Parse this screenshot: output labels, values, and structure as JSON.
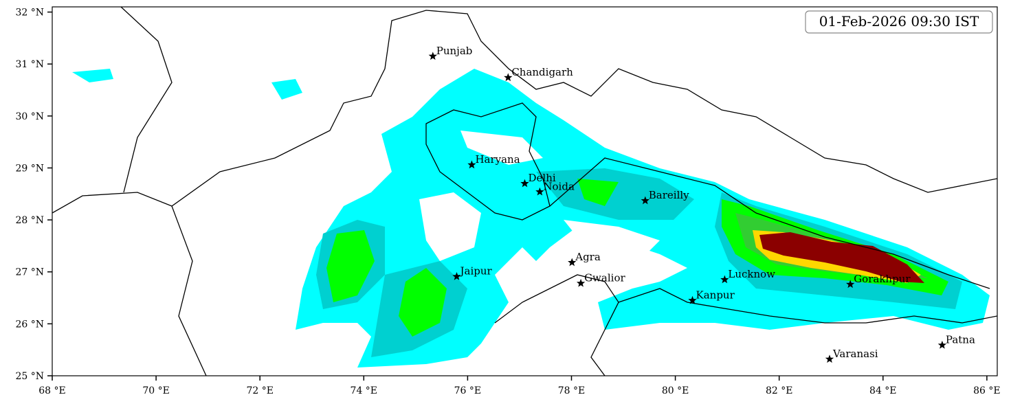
{
  "map": {
    "timestamp": "01-Feb-2026 09:30 IST",
    "xlim": [
      68,
      86.2
    ],
    "ylim": [
      25,
      32.1
    ],
    "xticks": [
      {
        "value": 68,
        "label": "68 °E"
      },
      {
        "value": 70,
        "label": "70 °E"
      },
      {
        "value": 72,
        "label": "72 °E"
      },
      {
        "value": 74,
        "label": "74 °E"
      },
      {
        "value": 76,
        "label": "76 °E"
      },
      {
        "value": 78,
        "label": "78 °E"
      },
      {
        "value": 80,
        "label": "80 °E"
      },
      {
        "value": 82,
        "label": "82 °E"
      },
      {
        "value": 84,
        "label": "84 °E"
      },
      {
        "value": 86,
        "label": "86 °E"
      }
    ],
    "yticks": [
      {
        "value": 25,
        "label": "25 °N"
      },
      {
        "value": 26,
        "label": "26 °N"
      },
      {
        "value": 27,
        "label": "27 °N"
      },
      {
        "value": 28,
        "label": "28 °N"
      },
      {
        "value": 29,
        "label": "29 °N"
      },
      {
        "value": 30,
        "label": "30 °N"
      },
      {
        "value": 31,
        "label": "31 °N"
      },
      {
        "value": 32,
        "label": "32 °N"
      }
    ],
    "cities": [
      {
        "name": "Punjab",
        "lon": 75.33,
        "lat": 31.15
      },
      {
        "name": "Chandigarh",
        "lon": 76.78,
        "lat": 30.74
      },
      {
        "name": "Haryana",
        "lon": 76.08,
        "lat": 29.06
      },
      {
        "name": "Delhi",
        "lon": 77.1,
        "lat": 28.7
      },
      {
        "name": "Noida",
        "lon": 77.39,
        "lat": 28.54
      },
      {
        "name": "Bareilly",
        "lon": 79.42,
        "lat": 28.37
      },
      {
        "name": "Agra",
        "lon": 78.01,
        "lat": 27.18
      },
      {
        "name": "Jaipur",
        "lon": 75.79,
        "lat": 26.91
      },
      {
        "name": "Gwalior",
        "lon": 78.18,
        "lat": 26.78
      },
      {
        "name": "Lucknow",
        "lon": 80.95,
        "lat": 26.85
      },
      {
        "name": "Kanpur",
        "lon": 80.33,
        "lat": 26.45
      },
      {
        "name": "Gorakhpur",
        "lon": 83.37,
        "lat": 26.76
      },
      {
        "name": "Varanasi",
        "lon": 82.97,
        "lat": 25.32
      },
      {
        "name": "Patna",
        "lon": 85.14,
        "lat": 25.59
      }
    ]
  }
}
